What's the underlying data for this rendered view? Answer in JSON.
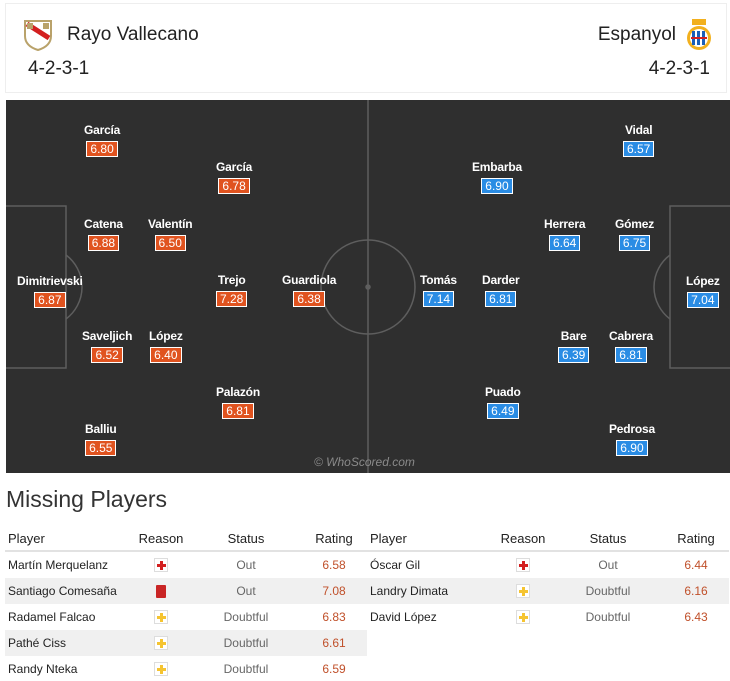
{
  "header": {
    "home": {
      "name": "Rayo Vallecano",
      "formation": "4-2-3-1",
      "logo": "rayo-vallecano-badge"
    },
    "away": {
      "name": "Espanyol",
      "formation": "4-2-3-1",
      "logo": "espanyol-badge"
    }
  },
  "pitch": {
    "watermark": "© WhoScored.com",
    "home_players": [
      {
        "name": "Dimitrievski",
        "rating": "6.87"
      },
      {
        "name": "García",
        "rating": "6.80"
      },
      {
        "name": "Catena",
        "rating": "6.88"
      },
      {
        "name": "Saveljich",
        "rating": "6.52"
      },
      {
        "name": "Balliu",
        "rating": "6.55"
      },
      {
        "name": "Valentín",
        "rating": "6.50"
      },
      {
        "name": "López",
        "rating": "6.40"
      },
      {
        "name": "García",
        "rating": "6.78"
      },
      {
        "name": "Trejo",
        "rating": "7.28"
      },
      {
        "name": "Palazón",
        "rating": "6.81"
      },
      {
        "name": "Guardiola",
        "rating": "6.38"
      }
    ],
    "away_players": [
      {
        "name": "López",
        "rating": "7.04"
      },
      {
        "name": "Vidal",
        "rating": "6.57"
      },
      {
        "name": "Gómez",
        "rating": "6.75"
      },
      {
        "name": "Cabrera",
        "rating": "6.81"
      },
      {
        "name": "Pedrosa",
        "rating": "6.90"
      },
      {
        "name": "Herrera",
        "rating": "6.64"
      },
      {
        "name": "Bare",
        "rating": "6.39"
      },
      {
        "name": "Embarba",
        "rating": "6.90"
      },
      {
        "name": "Darder",
        "rating": "6.81"
      },
      {
        "name": "Puado",
        "rating": "6.49"
      },
      {
        "name": "Tomás",
        "rating": "7.14"
      }
    ],
    "colors": {
      "home": "#e0531f",
      "away": "#2a8ce4",
      "pitch": "#2f2f2f"
    }
  },
  "missing": {
    "title": "Missing Players",
    "columns": {
      "player": "Player",
      "reason": "Reason",
      "status": "Status",
      "rating": "Rating"
    },
    "home": [
      {
        "player": "Martín Merquelanz",
        "reason": "injury-icon",
        "status": "Out",
        "rating": "6.58"
      },
      {
        "player": "Santiago Comesaña",
        "reason": "red-card-icon",
        "status": "Out",
        "rating": "7.08"
      },
      {
        "player": "Radamel Falcao",
        "reason": "doubtful-icon",
        "status": "Doubtful",
        "rating": "6.83"
      },
      {
        "player": "Pathé Ciss",
        "reason": "doubtful-icon",
        "status": "Doubtful",
        "rating": "6.61"
      },
      {
        "player": "Randy Nteka",
        "reason": "doubtful-icon",
        "status": "Doubtful",
        "rating": "6.59"
      }
    ],
    "away": [
      {
        "player": "Óscar Gil",
        "reason": "injury-icon",
        "status": "Out",
        "rating": "6.44"
      },
      {
        "player": "Landry Dimata",
        "reason": "doubtful-icon",
        "status": "Doubtful",
        "rating": "6.16"
      },
      {
        "player": "David López",
        "reason": "doubtful-icon",
        "status": "Doubtful",
        "rating": "6.43"
      }
    ]
  }
}
